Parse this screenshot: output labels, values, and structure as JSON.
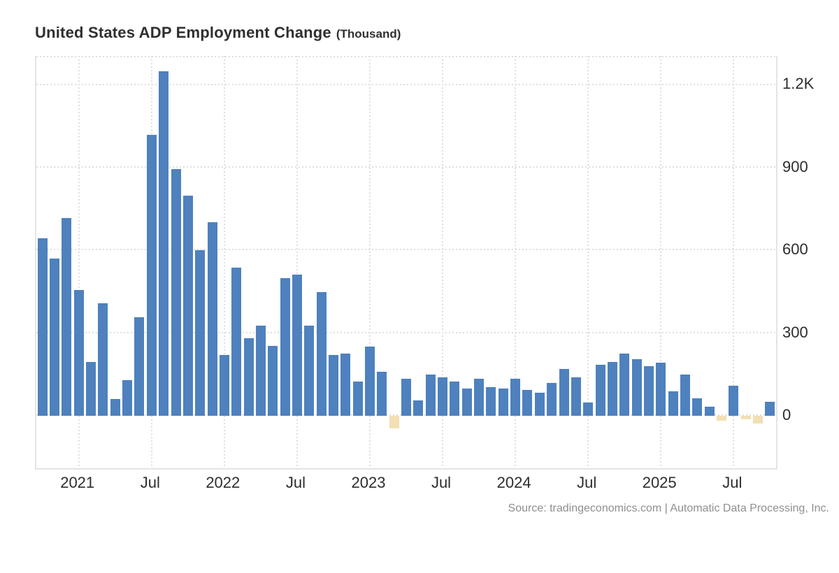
{
  "header": {
    "title": "United States ADP Employment Change",
    "subtitle": "(Thousand)"
  },
  "footer": {
    "source": "Source: tradingeconomics.com | Automatic Data Processing, Inc."
  },
  "y_axis": {
    "tick_labels": [
      "0",
      "300",
      "600",
      "900",
      "1.2K"
    ],
    "tick_values": [
      0,
      300,
      600,
      900,
      1200
    ]
  },
  "x_axis": {
    "ticks": [
      {
        "bar_index": 3,
        "label": "2021"
      },
      {
        "bar_index": 9,
        "label": "Jul"
      },
      {
        "bar_index": 15,
        "label": "2022"
      },
      {
        "bar_index": 21,
        "label": "Jul"
      },
      {
        "bar_index": 27,
        "label": "2023"
      },
      {
        "bar_index": 33,
        "label": "Jul"
      },
      {
        "bar_index": 39,
        "label": "2024"
      },
      {
        "bar_index": 45,
        "label": "Jul"
      },
      {
        "bar_index": 51,
        "label": "2025"
      },
      {
        "bar_index": 57,
        "label": "Jul"
      }
    ]
  },
  "colors": {
    "positive_bar": "#4e81bd",
    "negative_bar": "#f4dfb3",
    "grid": "#dfdfdf",
    "axis_border": "#e4e4e4",
    "text": "#2d2d2d",
    "source_text": "#8f8f8f"
  },
  "chart_data": {
    "type": "bar",
    "title": "United States ADP Employment Change",
    "unit": "Thousand",
    "ylim": [
      -194,
      1300
    ],
    "grid": "dotted",
    "legend_position": "none",
    "x": [
      "Oct 2020",
      "Nov 2020",
      "Dec 2020",
      "Jan 2021",
      "Feb 2021",
      "Mar 2021",
      "Apr 2021",
      "May 2021",
      "Jun 2021",
      "Jul 2021",
      "Aug 2021",
      "Sep 2021",
      "Oct 2021",
      "Nov 2021",
      "Dec 2021",
      "Jan 2022",
      "Feb 2022",
      "Mar 2022",
      "Apr 2022",
      "May 2022",
      "Jun 2022",
      "Jul 2022",
      "Aug 2022",
      "Sep 2022",
      "Oct 2022",
      "Nov 2022",
      "Dec 2022",
      "Jan 2023",
      "Feb 2023",
      "Mar 2023",
      "Apr 2023",
      "May 2023",
      "Jun 2023",
      "Jul 2023",
      "Aug 2023",
      "Sep 2023",
      "Oct 2023",
      "Nov 2023",
      "Dec 2023",
      "Jan 2024",
      "Feb 2024",
      "Mar 2024",
      "Apr 2024",
      "May 2024",
      "Jun 2024",
      "Jul 2024",
      "Aug 2024",
      "Sep 2024",
      "Oct 2024",
      "Nov 2024",
      "Dec 2024",
      "Jan 2025",
      "Feb 2025",
      "Mar 2025",
      "Apr 2025",
      "May 2025",
      "Jun 2025",
      "Jul 2025",
      "Aug 2025",
      "Sep 2025",
      "Oct 2025"
    ],
    "values": [
      640,
      566,
      713,
      451,
      191,
      404,
      56,
      126,
      353,
      1013,
      1245,
      891,
      794,
      596,
      697,
      216,
      532,
      277,
      323,
      248,
      494,
      507,
      323,
      445,
      217,
      222,
      120,
      247,
      155,
      -50,
      130,
      52,
      146,
      135,
      120,
      95,
      131,
      100,
      95,
      130,
      90,
      79,
      114,
      166,
      135,
      44,
      180,
      192,
      221,
      200,
      175,
      188,
      85,
      146,
      60,
      28,
      -21,
      106,
      -17,
      -33,
      46
    ]
  }
}
